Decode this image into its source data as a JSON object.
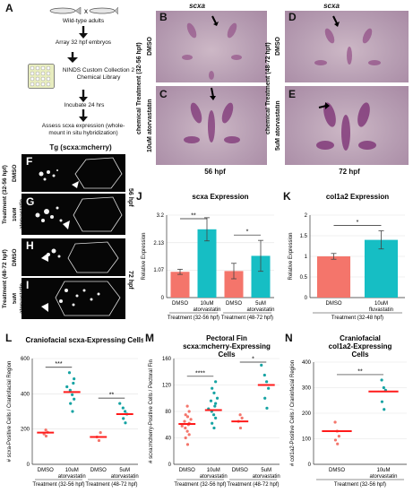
{
  "figure": {
    "panels": {
      "A": "A",
      "B": "B",
      "C": "C",
      "D": "D",
      "E": "E",
      "F": "F",
      "G": "G",
      "H": "H",
      "I": "I",
      "J": "J",
      "K": "K",
      "L": "L",
      "M": "M",
      "N": "N"
    },
    "workflow": {
      "step1": "Wild-type adults",
      "step2": "Array 32 hpf embryos",
      "step3": "NINDS Custom Collection 2 Chemical Library",
      "step4": "Incubate 24 hrs",
      "step5": "Assess scxa expression (whole-mount in situ hybridization)"
    },
    "ish": {
      "gene_top": "scxa",
      "side_label": "chemical Treatment (32-56 hpf)",
      "side_label_right": "chemical Treatment (48-72 hpf)",
      "row_dmso": "DMSO",
      "row_drug_left": "10uM atorvastatin",
      "row_drug_right": "5uM atorvastatin",
      "time_left": "56 hpf",
      "time_right": "72 hpf"
    },
    "fluor": {
      "title": "Tg (scxa:mcherry)",
      "group1": "Treatment (32-56 hpf)",
      "group2": "Treatment (48-72 hpf)",
      "dmso": "DMSO",
      "drug1": "10uM atorvastatin",
      "drug2": "5uM atorvastatin",
      "time1": "56 hpf",
      "time2": "72 hpf"
    }
  },
  "chart_data": [
    {
      "id": "J",
      "type": "bar",
      "title": "scxa Expression",
      "ylabel": "Relative Expression",
      "ylim": [
        0,
        3.2
      ],
      "categories": [
        "DMSO",
        "10uM atorvastatin",
        "DMSO",
        "5uM atorvastatin"
      ],
      "values": [
        1.0,
        2.65,
        1.03,
        1.62
      ],
      "errors": [
        0.1,
        0.45,
        0.3,
        0.6
      ],
      "colors": [
        "#f4756b",
        "#16bec4",
        "#f4756b",
        "#16bec4"
      ],
      "groups": [
        "Treatment (32-56 hpf)",
        "Treatment (48-72 hpf)"
      ],
      "significance": [
        "**",
        "*"
      ]
    },
    {
      "id": "K",
      "type": "bar",
      "title": "col1a2 Expression",
      "ylabel": "Relative Expression",
      "ylim": [
        0,
        2.0
      ],
      "categories": [
        "DMSO",
        "10uM fluvastatin"
      ],
      "values": [
        1.0,
        1.4
      ],
      "errors": [
        0.07,
        0.22
      ],
      "colors": [
        "#f4756b",
        "#16bec4"
      ],
      "groups": [
        "Treatment (32-48 hpf)"
      ],
      "significance": [
        "*"
      ]
    },
    {
      "id": "L",
      "type": "scatter",
      "title": "Craniofacial scxa-Expressing Cells",
      "ylabel": "# scxa-Positive Cells / Craniofacial Region",
      "ylim": [
        0,
        600
      ],
      "categories": [
        "DMSO",
        "10uM atorvastatin",
        "DMSO",
        "5uM atorvastatin"
      ],
      "groups": [
        "Treatment (32-56 hpf)",
        "Treatment (48-72 hpf)"
      ],
      "means": [
        180,
        410,
        155,
        285
      ],
      "points": [
        [
          160,
          172,
          182,
          195
        ],
        [
          300,
          345,
          370,
          395,
          420,
          440,
          460,
          485,
          520
        ],
        [
          135,
          155,
          180
        ],
        [
          235,
          260,
          285,
          300,
          320,
          345
        ]
      ],
      "significance": [
        "***",
        "**"
      ]
    },
    {
      "id": "M",
      "type": "scatter",
      "title": "Pectoral Fin scxa:mcherry-Expressing Cells",
      "ylabel": "# scxa:mcherry-Positive Cells / Pectoral Fin",
      "ylim": [
        0,
        160
      ],
      "categories": [
        "DMSO",
        "10uM atorvastatin",
        "DMSO",
        "5uM atorvastatin"
      ],
      "groups": [
        "Treatment (32-56 hpf)",
        "Treatment (48-72 hpf)"
      ],
      "means": [
        61,
        82,
        65,
        120
      ],
      "points": [
        [
          30,
          40,
          45,
          50,
          55,
          58,
          60,
          62,
          65,
          68,
          72,
          75,
          80,
          88
        ],
        [
          55,
          62,
          70,
          75,
          80,
          84,
          88,
          92,
          96,
          100,
          108,
          115,
          125
        ],
        [
          55,
          65,
          70,
          75
        ],
        [
          85,
          100,
          115,
          125,
          135,
          150
        ]
      ],
      "significance": [
        "****",
        "*"
      ]
    },
    {
      "id": "N",
      "type": "scatter",
      "title": "Craniofacial col1a2-Expressing Cells",
      "ylabel": "# col1a2-Positive Cells / Craniofacial Region",
      "ylim": [
        0,
        400
      ],
      "categories": [
        "DMSO",
        "10uM atorvastatin"
      ],
      "groups": [
        "Treatment (32-56 hpf)"
      ],
      "means": [
        130,
        285
      ],
      "points": [
        [
          80,
          95,
          110,
          130,
          165
        ],
        [
          215,
          245,
          290,
          300,
          330
        ]
      ],
      "significance": [
        "**"
      ]
    }
  ]
}
